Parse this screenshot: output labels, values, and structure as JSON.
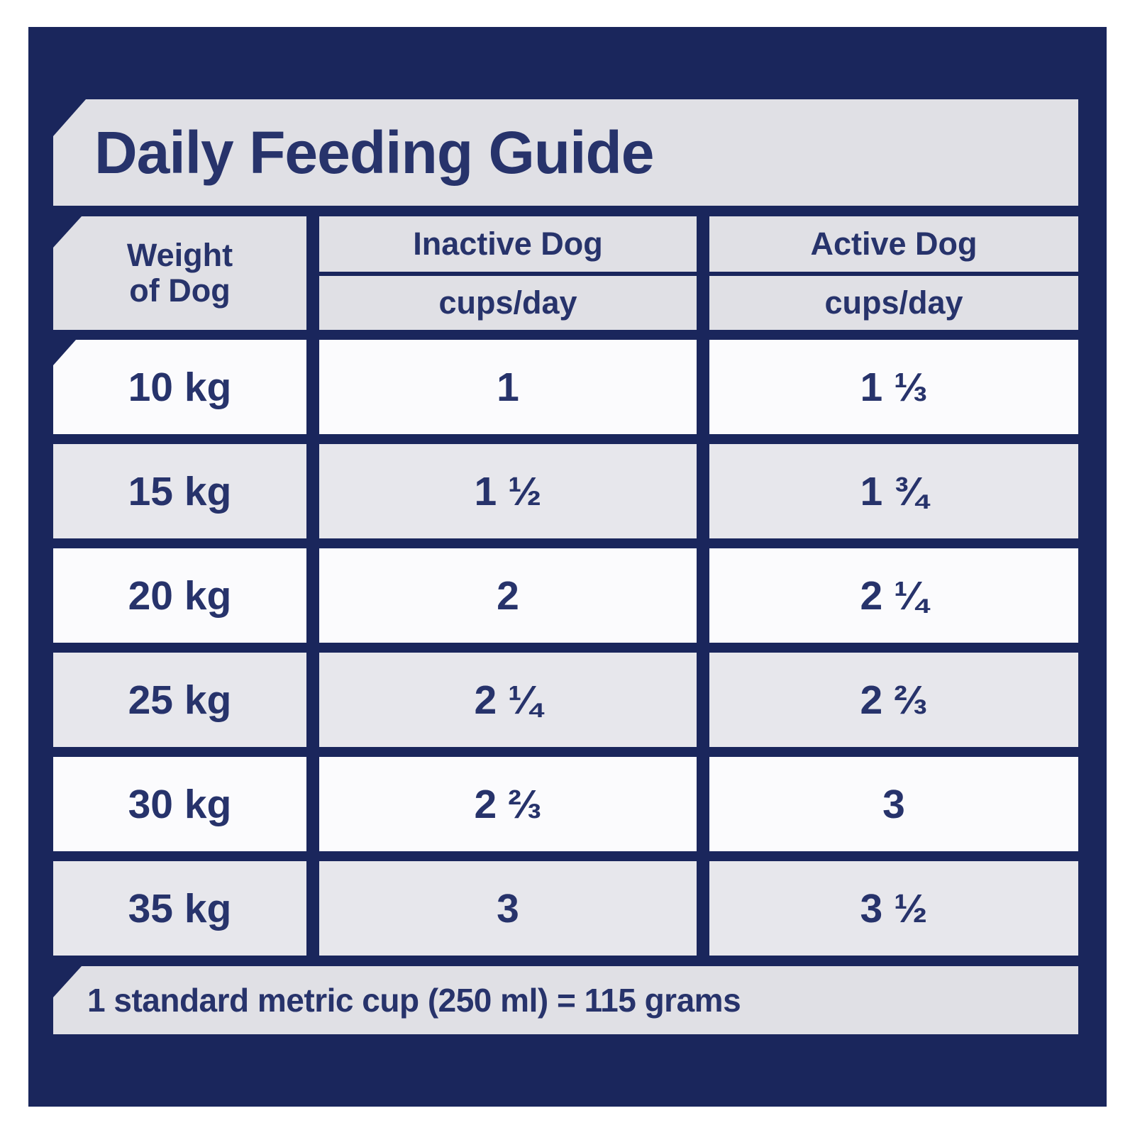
{
  "title": "Daily Feeding Guide",
  "table": {
    "columns": [
      {
        "label_line1": "Weight",
        "label_line2": "of Dog"
      },
      {
        "label": "Inactive Dog",
        "unit": "cups/day"
      },
      {
        "label": "Active Dog",
        "unit": "cups/day"
      }
    ],
    "rows": [
      {
        "weight": "10 kg",
        "inactive": "1",
        "active": "1 ⅓"
      },
      {
        "weight": "15 kg",
        "inactive": "1 ½",
        "active": "1 ¾"
      },
      {
        "weight": "20 kg",
        "inactive": "2",
        "active": "2 ¼"
      },
      {
        "weight": "25 kg",
        "inactive": "2 ¼",
        "active": "2 ⅔"
      },
      {
        "weight": "30 kg",
        "inactive": "2 ⅔",
        "active": "3"
      },
      {
        "weight": "35 kg",
        "inactive": "3",
        "active": "3 ½"
      }
    ]
  },
  "footer": {
    "note": "1 standard metric cup (250 ml) = 115 grams"
  },
  "colors": {
    "panel_navy": "#1a265c",
    "banner_gray": "#e0e0e5",
    "row_gray": "#e7e7ec",
    "row_white": "#fbfbfd",
    "text_navy": "#27336b"
  },
  "chart_data": {
    "type": "table",
    "title": "Daily Feeding Guide",
    "columns": [
      "Weight of Dog",
      "Inactive Dog (cups/day)",
      "Active Dog (cups/day)"
    ],
    "rows": [
      [
        "10 kg",
        "1",
        "1 1/3"
      ],
      [
        "15 kg",
        "1 1/2",
        "1 3/4"
      ],
      [
        "20 kg",
        "2",
        "2 1/4"
      ],
      [
        "25 kg",
        "2 1/4",
        "2 2/3"
      ],
      [
        "30 kg",
        "2 2/3",
        "3"
      ],
      [
        "35 kg",
        "3",
        "3 1/2"
      ]
    ],
    "note": "1 standard metric cup (250 ml) = 115 grams",
    "layout": "grid table on navy background, alternating white/gray rows, grid on"
  }
}
